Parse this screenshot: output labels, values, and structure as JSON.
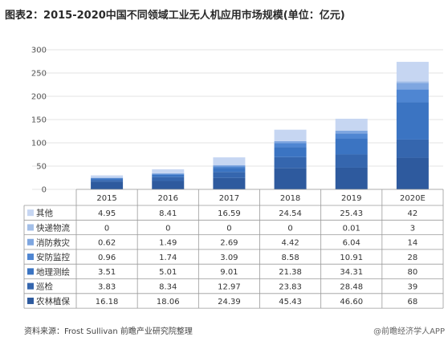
{
  "page": {
    "title": "图表2：2015-2020中国不同领域工业无人机应用市场规模(单位：亿元)",
    "source": "资料来源：Frost Sullivan 前瞻产业研究院整理",
    "credit": "@前瞻经济学人APP"
  },
  "chart_data": {
    "type": "bar",
    "stacked": true,
    "title": "图表2：2015-2020中国不同领域工业无人机应用市场规模(单位：亿元)",
    "categories": [
      "2015",
      "2016",
      "2017",
      "2018",
      "2019",
      "2020E"
    ],
    "ylim": [
      0,
      300
    ],
    "yticks": [
      0,
      50,
      100,
      150,
      200,
      250,
      300
    ],
    "grid": true,
    "legend": "data-table-below",
    "series": [
      {
        "name": "农林植保",
        "color": "#2e5a9e",
        "values": [
          16.18,
          18.06,
          24.39,
          45.43,
          46.6,
          68
        ],
        "labels": [
          "16.18",
          "18.06",
          "24.39",
          "45.43",
          "46.60",
          "68"
        ]
      },
      {
        "name": "巡检",
        "color": "#3566ae",
        "values": [
          3.83,
          8.34,
          12.97,
          23.83,
          28.48,
          39
        ],
        "labels": [
          "3.83",
          "8.34",
          "12.97",
          "23.83",
          "28.48",
          "39"
        ]
      },
      {
        "name": "地理测绘",
        "color": "#3b74c2",
        "values": [
          3.51,
          5.01,
          9.01,
          21.38,
          34.31,
          80
        ],
        "labels": [
          "3.51",
          "5.01",
          "9.01",
          "21.38",
          "34.31",
          "80"
        ]
      },
      {
        "name": "安防监控",
        "color": "#4f86d2",
        "values": [
          0.96,
          1.74,
          3.09,
          8.58,
          10.91,
          28
        ],
        "labels": [
          "0.96",
          "1.74",
          "3.09",
          "8.58",
          "10.91",
          "28"
        ]
      },
      {
        "name": "消防救灾",
        "color": "#7ea6e0",
        "values": [
          0.62,
          1.49,
          2.69,
          4.42,
          6.04,
          14
        ],
        "labels": [
          "0.62",
          "1.49",
          "2.69",
          "4.42",
          "6.04",
          "14"
        ]
      },
      {
        "name": "快递物流",
        "color": "#a3bfe8",
        "values": [
          0,
          0,
          0,
          0,
          0.01,
          3
        ],
        "labels": [
          "0",
          "0",
          "0",
          "0",
          "0.01",
          "3"
        ]
      },
      {
        "name": "其他",
        "color": "#c6d6f2",
        "values": [
          4.95,
          8.41,
          16.59,
          24.54,
          25.43,
          42
        ],
        "labels": [
          "4.95",
          "8.41",
          "16.59",
          "24.54",
          "25.43",
          "42"
        ]
      }
    ]
  }
}
